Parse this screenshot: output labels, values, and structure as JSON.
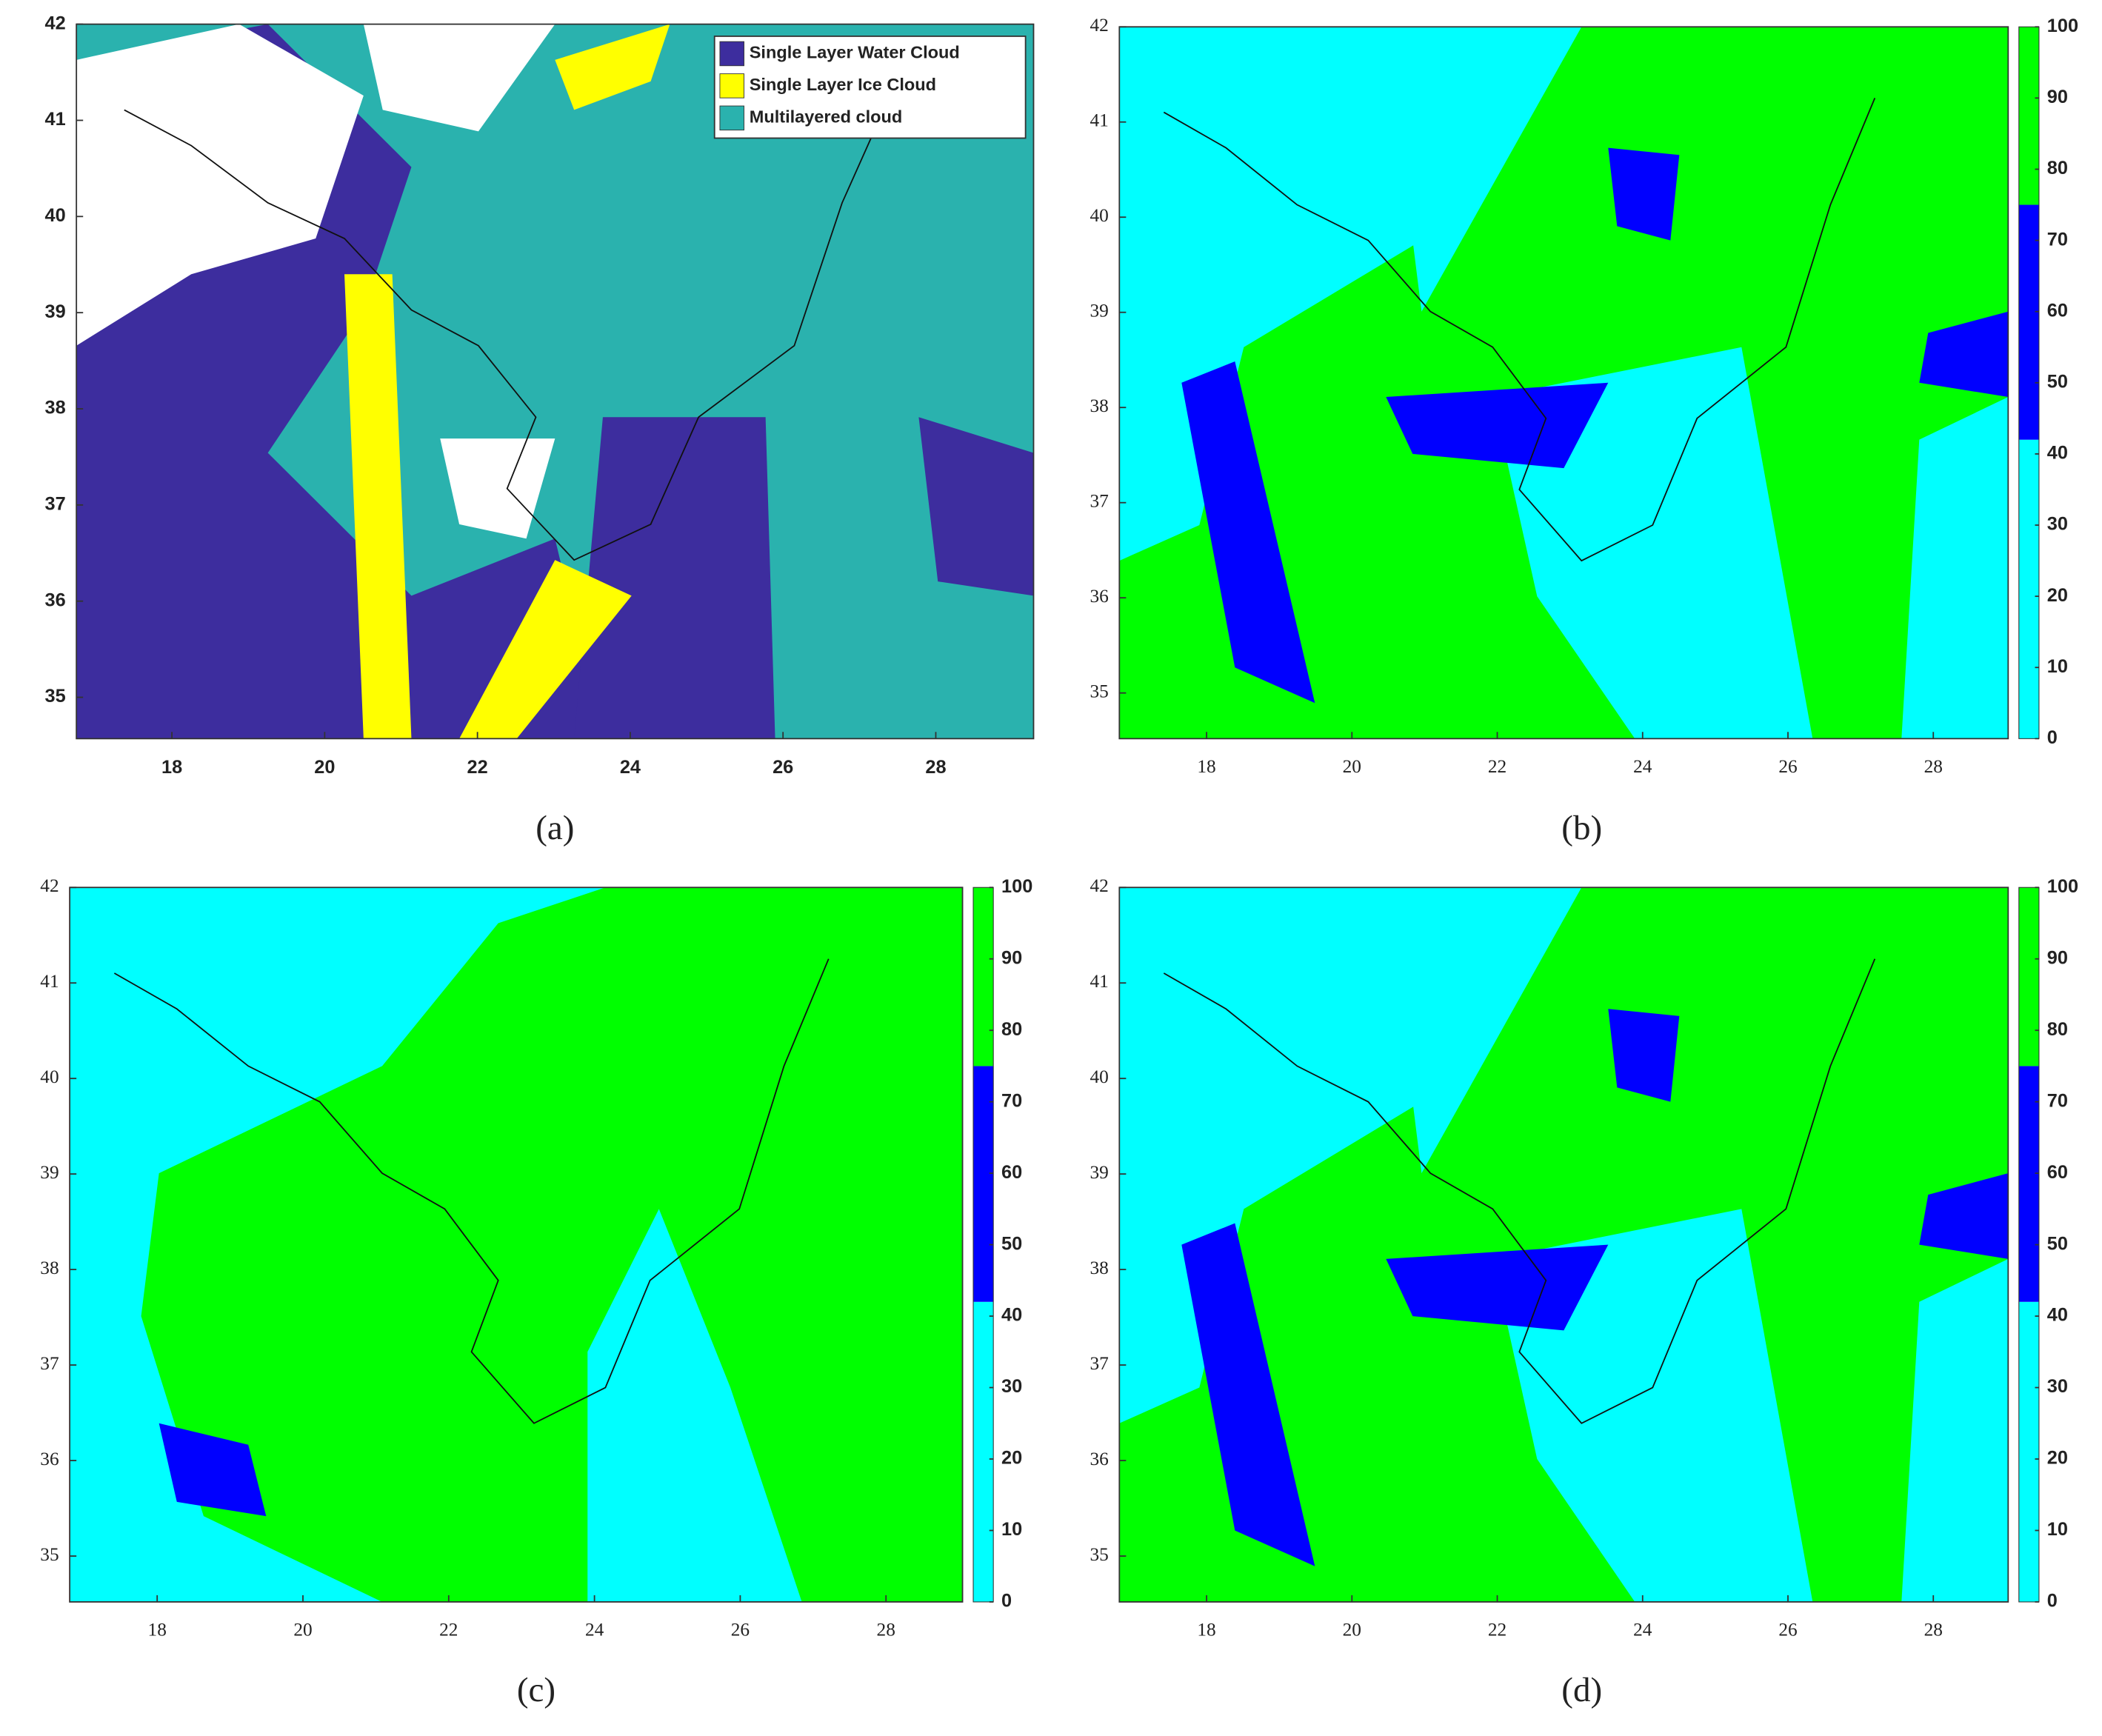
{
  "panels": [
    {
      "caption": "(a)",
      "xlim": [
        16.75,
        29.28
      ],
      "ylim": [
        34.57,
        42
      ],
      "xticks": [
        18,
        20,
        22,
        24,
        26,
        28
      ],
      "yticks": [
        35,
        36,
        37,
        38,
        39,
        40,
        41,
        42
      ],
      "legend": [
        {
          "name": "Single Layer Water Cloud",
          "color": "#3d2d9e"
        },
        {
          "name": "Single Layer Ice Cloud",
          "color": "#ffff00"
        },
        {
          "name": "Multilayered cloud",
          "color": "#2ab2ae"
        }
      ]
    },
    {
      "caption": "(b)",
      "xlim": [
        16.8,
        29.03
      ],
      "ylim": [
        34.52,
        42
      ],
      "xticks": [
        18,
        20,
        22,
        24,
        26,
        28
      ],
      "yticks": [
        35,
        36,
        37,
        38,
        39,
        40,
        41,
        42
      ],
      "colorbar": {
        "clim": [
          0,
          100
        ],
        "ticks": [
          0,
          10,
          20,
          30,
          40,
          50,
          60,
          70,
          80,
          90,
          100
        ],
        "bands": [
          {
            "from": 0,
            "to": 42,
            "color": "#00ffff"
          },
          {
            "from": 42,
            "to": 75,
            "color": "#0000ff"
          },
          {
            "from": 75,
            "to": 100,
            "color": "#00ff00"
          }
        ]
      }
    },
    {
      "caption": "(c)",
      "xlim": [
        16.8,
        29.05
      ],
      "ylim": [
        34.52,
        42
      ],
      "xticks": [
        18,
        20,
        22,
        24,
        26,
        28
      ],
      "yticks": [
        35,
        36,
        37,
        38,
        39,
        40,
        41,
        42
      ],
      "colorbar": {
        "clim": [
          0,
          100
        ],
        "ticks": [
          0,
          10,
          20,
          30,
          40,
          50,
          60,
          70,
          80,
          90,
          100
        ],
        "bands": [
          {
            "from": 0,
            "to": 42,
            "color": "#00ffff"
          },
          {
            "from": 42,
            "to": 75,
            "color": "#0000ff"
          },
          {
            "from": 75,
            "to": 100,
            "color": "#00ff00"
          }
        ]
      }
    },
    {
      "caption": "(d)",
      "xlim": [
        16.8,
        29.03
      ],
      "ylim": [
        34.52,
        42
      ],
      "xticks": [
        18,
        20,
        22,
        24,
        26,
        28
      ],
      "yticks": [
        35,
        36,
        37,
        38,
        39,
        40,
        41,
        42
      ],
      "colorbar": {
        "clim": [
          0,
          100
        ],
        "ticks": [
          0,
          10,
          20,
          30,
          40,
          50,
          60,
          70,
          80,
          90,
          100
        ],
        "bands": [
          {
            "from": 0,
            "to": 42,
            "color": "#00ffff"
          },
          {
            "from": 42,
            "to": 75,
            "color": "#0000ff"
          },
          {
            "from": 75,
            "to": 100,
            "color": "#00ff00"
          }
        ]
      }
    }
  ]
}
